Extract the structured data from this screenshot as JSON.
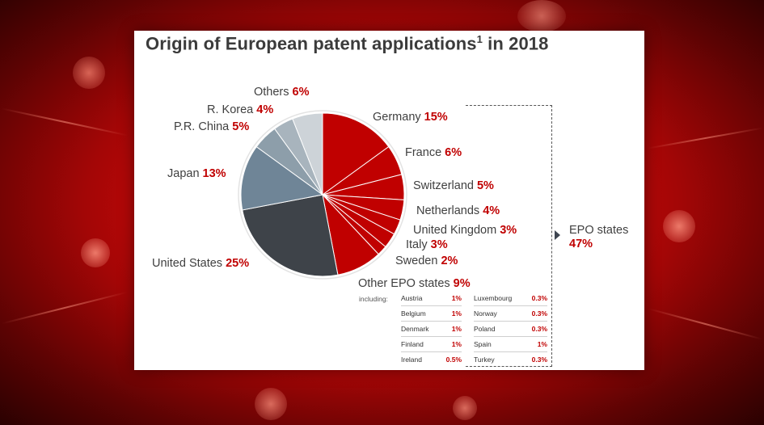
{
  "title": {
    "text": "Origin of European patent applications",
    "sup": "1",
    "suffix": " in 2018"
  },
  "chart_data": {
    "type": "pie",
    "title": "Origin of European patent applications1 in 2018",
    "unit": "%",
    "slices": [
      {
        "name": "Germany",
        "value": 15,
        "label": "15%",
        "color": "#c00000"
      },
      {
        "name": "France",
        "value": 6,
        "label": "6%",
        "color": "#c00000"
      },
      {
        "name": "Switzerland",
        "value": 5,
        "label": "5%",
        "color": "#c00000"
      },
      {
        "name": "Netherlands",
        "value": 4,
        "label": "4%",
        "color": "#c00000"
      },
      {
        "name": "United Kingdom",
        "value": 3,
        "label": "3%",
        "color": "#c00000"
      },
      {
        "name": "Italy",
        "value": 3,
        "label": "3%",
        "color": "#c00000"
      },
      {
        "name": "Sweden",
        "value": 2,
        "label": "2%",
        "color": "#c00000"
      },
      {
        "name": "Other EPO states",
        "value": 9,
        "label": "9%",
        "color": "#c00000"
      },
      {
        "name": "United States",
        "value": 25,
        "label": "25%",
        "color": "#3e4349"
      },
      {
        "name": "Japan",
        "value": 13,
        "label": "13%",
        "color": "#6f8597"
      },
      {
        "name": "P.R. China",
        "value": 5,
        "label": "5%",
        "color": "#8d9eaa"
      },
      {
        "name": "R. Korea",
        "value": 4,
        "label": "4%",
        "color": "#a8b4bd"
      },
      {
        "name": "Others",
        "value": 6,
        "label": "6%",
        "color": "#cdd3d8"
      }
    ],
    "group": {
      "name": "EPO states",
      "value": 47,
      "label": "47%"
    },
    "other_epo_breakdown": {
      "prefix": "including:",
      "left": [
        {
          "country": "Austria",
          "value": "1%"
        },
        {
          "country": "Belgium",
          "value": "1%"
        },
        {
          "country": "Denmark",
          "value": "1%"
        },
        {
          "country": "Finland",
          "value": "1%"
        },
        {
          "country": "Ireland",
          "value": "0.5%"
        }
      ],
      "right": [
        {
          "country": "Luxembourg",
          "value": "0.3%"
        },
        {
          "country": "Norway",
          "value": "0.3%"
        },
        {
          "country": "Poland",
          "value": "0.3%"
        },
        {
          "country": "Spain",
          "value": "1%"
        },
        {
          "country": "Turkey",
          "value": "0.3%"
        }
      ]
    }
  }
}
